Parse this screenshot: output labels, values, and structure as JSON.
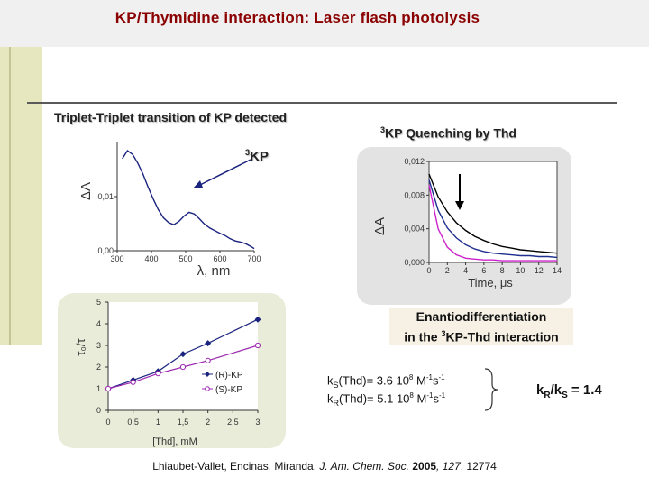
{
  "title": "KP/Thymidine interaction: Laser flash photolysis",
  "left_label": "Triplet-Triplet transition of KP detected",
  "right_label_sup": "3",
  "right_label_text": "KP Quenching by Thd",
  "kp_sup": "3",
  "kp_text": "KP",
  "enant": {
    "line1": "Enantiodifferentiation",
    "line2a": "in the ",
    "line2_sup": "3",
    "line2b": "KP-Thd interaction"
  },
  "rate_s": {
    "pre": "k",
    "sub": "S",
    "mid": "(Thd)= 3.6 10",
    "exp": "8",
    "unit_a": " M",
    "unit_a_sup": "-1",
    "unit_b": "s",
    "unit_b_sup": "-1"
  },
  "rate_r": {
    "pre": "k",
    "sub": "R",
    "mid": "(Thd)= 5.1 10",
    "exp": "8",
    "unit_a": " M",
    "unit_a_sup": "-1",
    "unit_b": "s",
    "unit_b_sup": "-1"
  },
  "ratio": {
    "k1": "k",
    "sub1": "R",
    "slash": "/k",
    "sub2": "S",
    "val": " = 1.4"
  },
  "footer": {
    "authors": "Lhiaubet-Vallet, Encinas, Miranda.  ",
    "journal": "J. Am. Chem. Soc.",
    "space": " ",
    "year": "2005",
    "vol": ", 127",
    "pages": ", 12774"
  },
  "chart_data": [
    {
      "type": "line",
      "x_ticks": [
        "300",
        "400",
        "500",
        "600",
        "700"
      ],
      "y_ticks": [
        "0,00",
        "0,01"
      ],
      "xlabel": "λ, nm",
      "ylabel": "ΔA",
      "xlim": [
        300,
        700
      ],
      "ylim": [
        0,
        0.02
      ],
      "x": [
        315,
        330,
        345,
        360,
        375,
        390,
        405,
        420,
        435,
        450,
        465,
        480,
        495,
        510,
        525,
        540,
        555,
        570,
        585,
        600,
        615,
        630,
        645,
        660,
        675,
        690,
        700
      ],
      "series": [
        {
          "values": [
            0.017,
            0.0185,
            0.0178,
            0.0162,
            0.0142,
            0.0118,
            0.0096,
            0.0076,
            0.0061,
            0.0052,
            0.0048,
            0.0054,
            0.0064,
            0.0071,
            0.0068,
            0.0059,
            0.0049,
            0.0042,
            0.0037,
            0.0032,
            0.0028,
            0.0022,
            0.0018,
            0.0016,
            0.0013,
            0.0008,
            0.0004
          ]
        }
      ]
    },
    {
      "type": "line",
      "x_ticks": [
        "0",
        "2",
        "4",
        "6",
        "8",
        "10",
        "12",
        "14"
      ],
      "y_ticks": [
        "0,000",
        "0,004",
        "0,008",
        "0,012"
      ],
      "xlabel": "Time, μs",
      "ylabel": "ΔA",
      "xlim": [
        0,
        14
      ],
      "ylim": [
        0,
        0.012
      ],
      "series": [
        {
          "color": "#000000",
          "values": [
            0.0105,
            0.0078,
            0.006,
            0.0047,
            0.0038,
            0.0031,
            0.0026,
            0.0022,
            0.0019,
            0.0017,
            0.0015,
            0.0014,
            0.0013,
            0.0012,
            0.0011
          ]
        },
        {
          "color": "#1f2f8f",
          "values": [
            0.0098,
            0.0062,
            0.0041,
            0.0029,
            0.0021,
            0.0016,
            0.0013,
            0.0011,
            0.001,
            0.0009,
            0.0008,
            0.0008,
            0.0007,
            0.0007,
            0.0006
          ]
        },
        {
          "color": "#cc22cc",
          "values": [
            0.0092,
            0.004,
            0.0018,
            0.0009,
            0.0005,
            0.0004,
            0.0003,
            0.0003,
            0.0002,
            0.0002,
            0.0002,
            0.0002,
            0.0002,
            0.0002,
            0.0002
          ]
        }
      ]
    },
    {
      "type": "scatter",
      "x_ticks": [
        "0",
        "0,5",
        "1",
        "1,5",
        "2",
        "2,5",
        "3"
      ],
      "y_ticks": [
        "0",
        "1",
        "2",
        "3",
        "4",
        "5"
      ],
      "xlabel": "[Thd], mM",
      "ylabel": "τ₀/τ",
      "xlim": [
        0,
        3
      ],
      "ylim": [
        0,
        5
      ],
      "series": [
        {
          "name": "(R)-KP",
          "color": "#1a237e",
          "x": [
            0,
            0.5,
            1,
            1.5,
            2,
            3
          ],
          "y": [
            1.0,
            1.4,
            1.8,
            2.6,
            3.1,
            4.2
          ]
        },
        {
          "name": "(S)-KP",
          "color": "#9c27b0",
          "x": [
            0,
            0.5,
            1,
            1.5,
            2,
            3
          ],
          "y": [
            1.0,
            1.3,
            1.7,
            2.0,
            2.3,
            3.0
          ]
        }
      ]
    }
  ]
}
